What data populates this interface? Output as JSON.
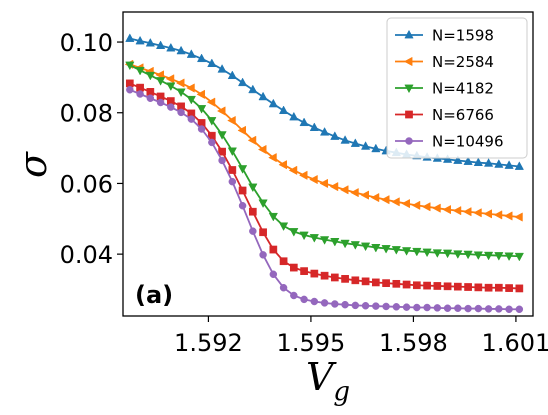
{
  "chart_data": {
    "type": "line",
    "title": "",
    "panel_label": "(a)",
    "xlabel": "V",
    "xlabel_sub": "g",
    "ylabel": "σ",
    "xlim": [
      1.5895,
      1.6015
    ],
    "ylim": [
      0.0225,
      0.1085
    ],
    "xticks": [
      1.592,
      1.595,
      1.598,
      1.601
    ],
    "xtick_labels": [
      "1.592",
      "1.595",
      "1.598",
      "1.601"
    ],
    "yticks": [
      0.04,
      0.06,
      0.08,
      0.1
    ],
    "ytick_labels": [
      "0.04",
      "0.06",
      "0.08",
      "0.10"
    ],
    "grid": false,
    "legend_position": "top-right",
    "x": [
      1.5897,
      1.59,
      1.5903,
      1.5906,
      1.5909,
      1.5912,
      1.5915,
      1.5918,
      1.5921,
      1.5924,
      1.5927,
      1.593,
      1.5933,
      1.5936,
      1.5939,
      1.5942,
      1.5945,
      1.5948,
      1.5951,
      1.5954,
      1.5957,
      1.596,
      1.5963,
      1.5966,
      1.5969,
      1.5972,
      1.5975,
      1.5978,
      1.5981,
      1.5984,
      1.5987,
      1.599,
      1.5993,
      1.5996,
      1.5999,
      1.6002,
      1.6005,
      1.6008,
      1.6011
    ],
    "series": [
      {
        "name": "N=1598",
        "color": "#1f77b4",
        "marker": "triangle-up",
        "values": [
          0.101,
          0.1003,
          0.0997,
          0.099,
          0.0983,
          0.0975,
          0.0965,
          0.0953,
          0.0939,
          0.0923,
          0.0905,
          0.0885,
          0.0865,
          0.0845,
          0.0825,
          0.0806,
          0.0788,
          0.0772,
          0.0758,
          0.0745,
          0.0733,
          0.0722,
          0.0713,
          0.0705,
          0.0698,
          0.0692,
          0.0687,
          0.0682,
          0.0678,
          0.0674,
          0.0671,
          0.0668,
          0.0665,
          0.0662,
          0.0659,
          0.0657,
          0.0654,
          0.0651,
          0.0648
        ]
      },
      {
        "name": "N=2584",
        "color": "#ff7f0e",
        "marker": "triangle-left",
        "values": [
          0.0937,
          0.0927,
          0.0917,
          0.0907,
          0.0896,
          0.0884,
          0.087,
          0.0852,
          0.083,
          0.0805,
          0.0778,
          0.075,
          0.0722,
          0.0696,
          0.0673,
          0.0653,
          0.0637,
          0.0623,
          0.0611,
          0.06,
          0.0591,
          0.0582,
          0.0574,
          0.0567,
          0.056,
          0.0554,
          0.0548,
          0.0543,
          0.0538,
          0.0534,
          0.053,
          0.0526,
          0.0523,
          0.052,
          0.0517,
          0.0514,
          0.0511,
          0.0508,
          0.0505
        ]
      },
      {
        "name": "N=4182",
        "color": "#2ca02c",
        "marker": "triangle-down",
        "values": [
          0.0935,
          0.092,
          0.0906,
          0.0891,
          0.0876,
          0.0859,
          0.0838,
          0.0812,
          0.0778,
          0.0738,
          0.0692,
          0.0642,
          0.059,
          0.0545,
          0.0507,
          0.048,
          0.0464,
          0.0454,
          0.0447,
          0.0441,
          0.0436,
          0.0431,
          0.0427,
          0.0423,
          0.0419,
          0.0416,
          0.0413,
          0.041,
          0.0408,
          0.0406,
          0.0404,
          0.0403,
          0.0401,
          0.04,
          0.0398,
          0.0397,
          0.0396,
          0.0395,
          0.0394
        ]
      },
      {
        "name": "N=6766",
        "color": "#d62728",
        "marker": "square",
        "values": [
          0.0883,
          0.0871,
          0.0859,
          0.0846,
          0.0833,
          0.0818,
          0.0798,
          0.0771,
          0.0735,
          0.069,
          0.0638,
          0.058,
          0.052,
          0.0462,
          0.0413,
          0.038,
          0.0362,
          0.0352,
          0.0345,
          0.0339,
          0.0334,
          0.033,
          0.0326,
          0.0323,
          0.032,
          0.0318,
          0.0316,
          0.0314,
          0.0312,
          0.0311,
          0.031,
          0.0309,
          0.0308,
          0.0307,
          0.0306,
          0.0305,
          0.0305,
          0.0304,
          0.0303
        ]
      },
      {
        "name": "N=10496",
        "color": "#9467bd",
        "marker": "circle",
        "values": [
          0.0865,
          0.0853,
          0.0841,
          0.0829,
          0.0816,
          0.0801,
          0.0782,
          0.0754,
          0.0716,
          0.0665,
          0.0605,
          0.0537,
          0.0465,
          0.0398,
          0.0343,
          0.0305,
          0.0283,
          0.0272,
          0.0266,
          0.0262,
          0.0259,
          0.0257,
          0.0255,
          0.0254,
          0.0253,
          0.0252,
          0.0251,
          0.025,
          0.0249,
          0.0249,
          0.0248,
          0.0247,
          0.0247,
          0.0246,
          0.0246,
          0.0245,
          0.0245,
          0.0244,
          0.0244
        ]
      }
    ]
  }
}
